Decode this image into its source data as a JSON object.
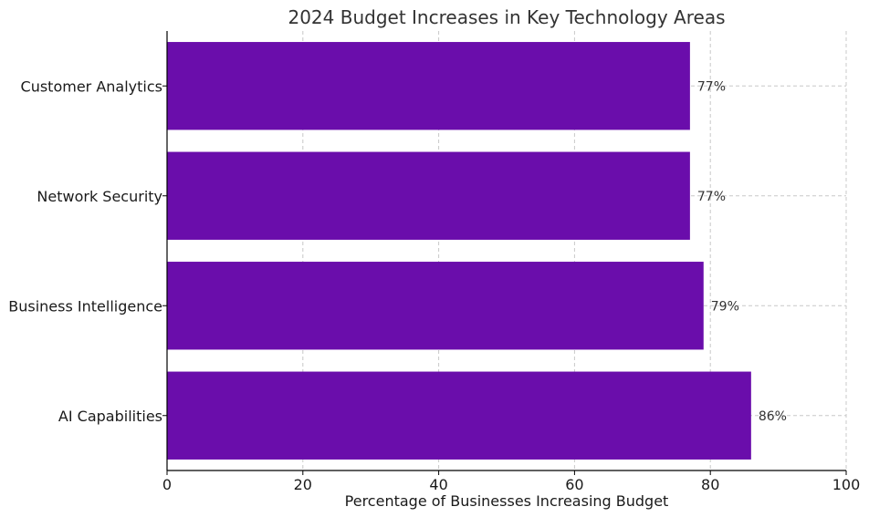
{
  "chart_data": {
    "type": "bar",
    "orientation": "horizontal",
    "title": "2024 Budget Increases in Key Technology Areas",
    "xlabel": "Percentage of Businesses Increasing Budget",
    "ylabel": "",
    "categories": [
      "AI Capabilities",
      "Business Intelligence",
      "Network Security",
      "Customer Analytics"
    ],
    "values": [
      86,
      79,
      77,
      77
    ],
    "data_labels": [
      "86%",
      "79%",
      "77%",
      "77%"
    ],
    "xlim": [
      0,
      100
    ],
    "xticks": [
      0,
      20,
      40,
      60,
      80,
      100
    ],
    "xtick_labels": [
      "0",
      "20",
      "40",
      "60",
      "80",
      "100"
    ],
    "grid": true,
    "bar_color": "#6a0dab"
  }
}
